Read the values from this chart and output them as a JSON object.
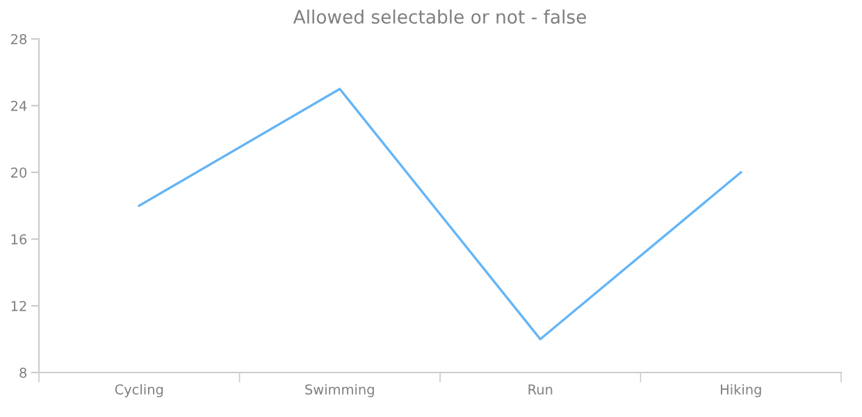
{
  "chart_data": {
    "type": "line",
    "title": "Allowed selectable or not - false",
    "categories": [
      "Cycling",
      "Swimming",
      "Run",
      "Hiking"
    ],
    "series": [
      {
        "color": "#64b5f6",
        "values": [
          18,
          25,
          10,
          20
        ]
      }
    ],
    "ylim": [
      8,
      28
    ],
    "yticks": [
      8,
      12,
      16,
      20,
      24,
      28
    ],
    "grid": false,
    "marker": "none",
    "line_style": "solid"
  }
}
